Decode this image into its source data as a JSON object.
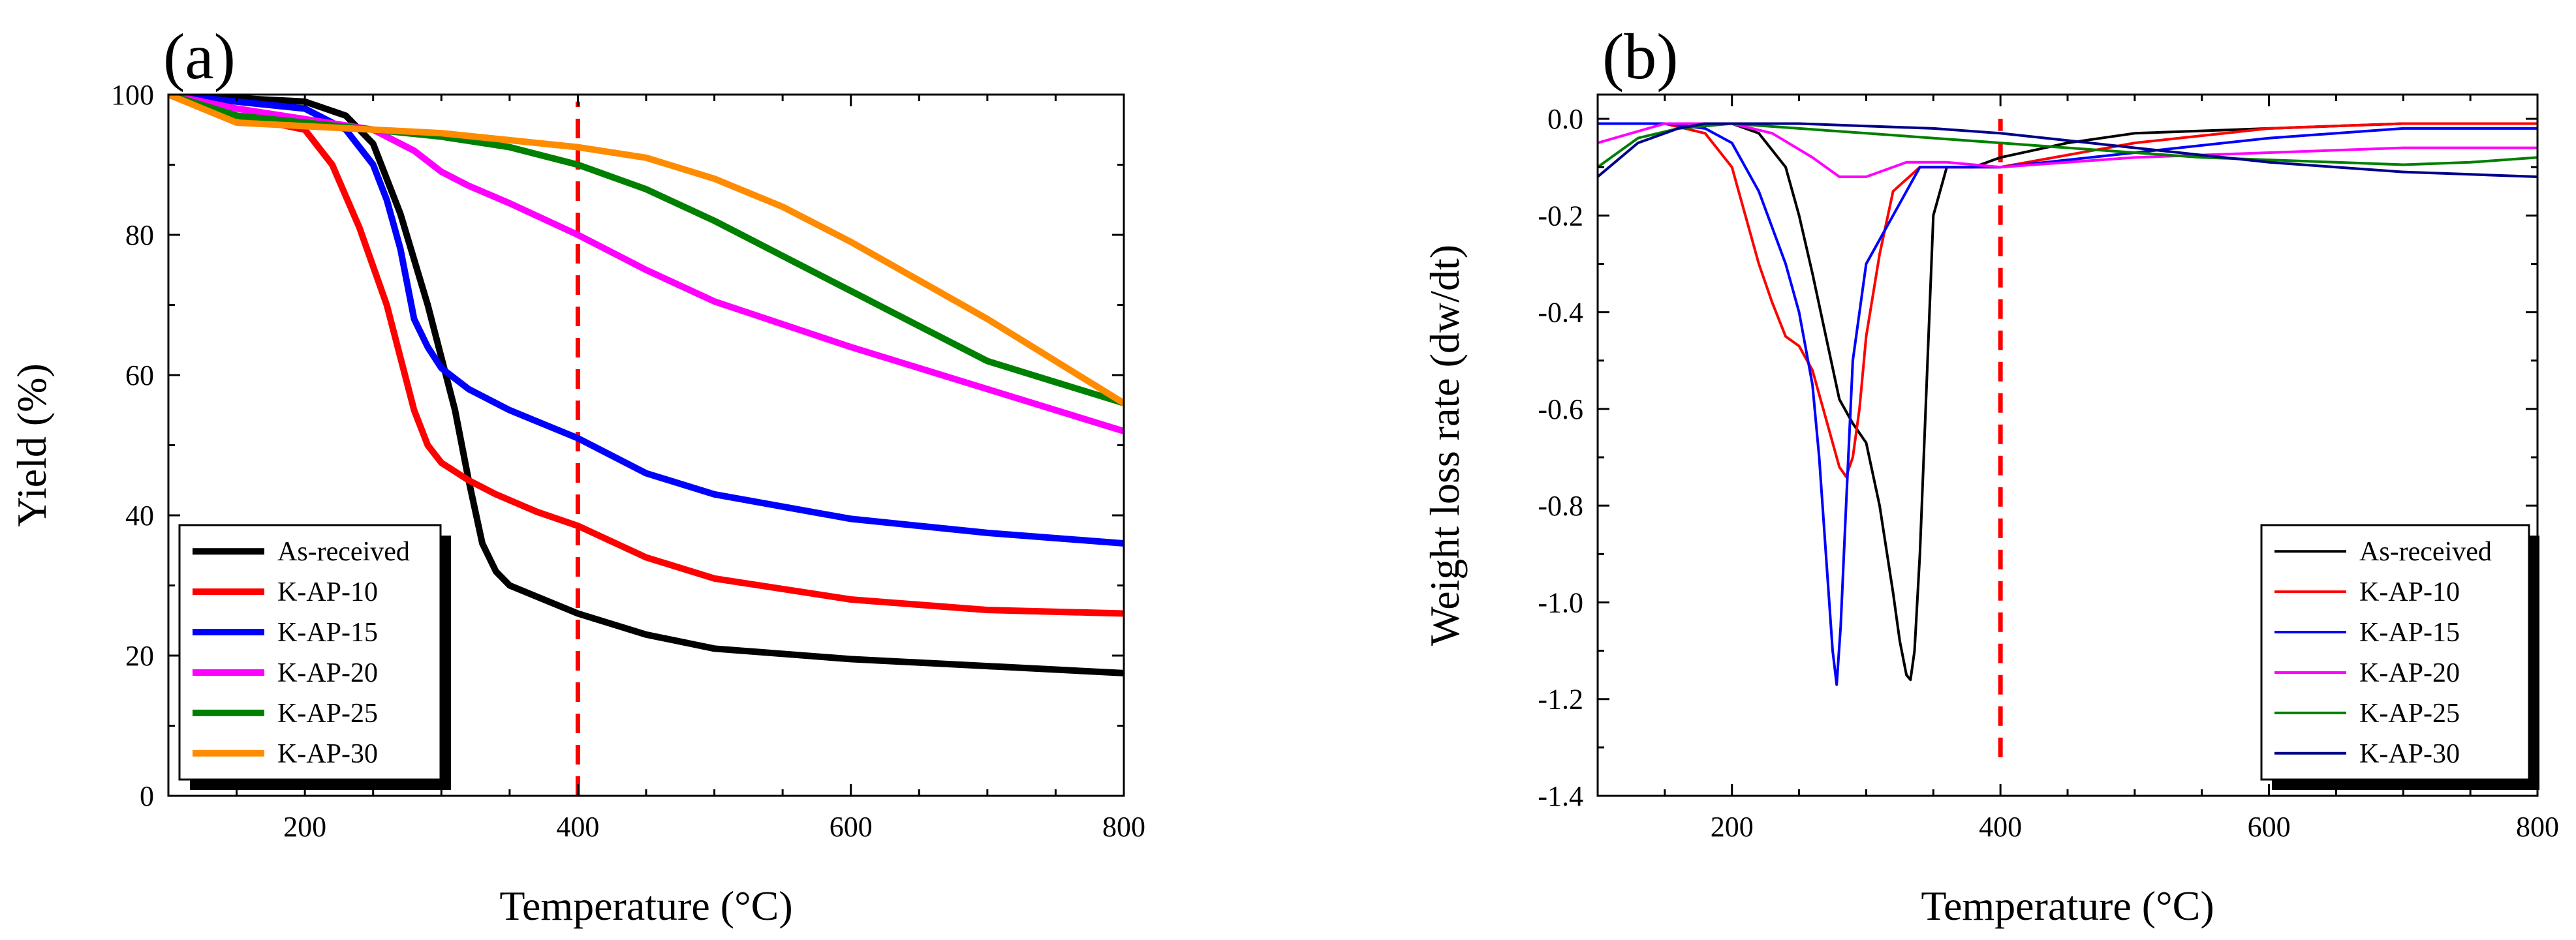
{
  "figure": {
    "panels": [
      "(a)",
      "(b)"
    ]
  },
  "colors": {
    "As-received": "#000000",
    "K-AP-10": "#ff0000",
    "K-AP-15": "#0000ff",
    "K-AP-20": "#ff00ff",
    "K-AP-25": "#008000",
    "K-AP-30": "#ff8c00",
    "K-AP-30-b": "#00008b",
    "marker_line": "#ff0000"
  },
  "chart_data": [
    {
      "panel": "(a)",
      "type": "line",
      "title": "",
      "xlabel": "Temperature (°C)",
      "ylabel": "Yield (%)",
      "xlim": [
        100,
        800
      ],
      "ylim": [
        0,
        100
      ],
      "xticks": [
        200,
        400,
        600,
        800
      ],
      "yticks": [
        0,
        20,
        40,
        60,
        80,
        100
      ],
      "grid": false,
      "legend_position": "bottom-left",
      "vertical_marker": {
        "x": 400,
        "style": "dashed",
        "color": "#ff0000",
        "y_range": [
          0,
          99
        ]
      },
      "series": [
        {
          "name": "As-received",
          "color": "#000000",
          "x": [
            100,
            150,
            200,
            230,
            250,
            270,
            290,
            310,
            320,
            330,
            340,
            350,
            375,
            400,
            450,
            500,
            600,
            700,
            800
          ],
          "y": [
            100,
            99.5,
            99,
            97,
            93,
            83,
            70,
            55,
            45,
            36,
            32,
            30,
            28,
            26,
            23,
            21,
            19.5,
            18.5,
            17.5
          ]
        },
        {
          "name": "K-AP-10",
          "color": "#ff0000",
          "x": [
            100,
            150,
            200,
            220,
            240,
            260,
            280,
            290,
            300,
            320,
            340,
            370,
            400,
            450,
            500,
            600,
            700,
            800
          ],
          "y": [
            100,
            97,
            95,
            90,
            81,
            70,
            55,
            50,
            47.5,
            45,
            43,
            40.5,
            38.5,
            34,
            31,
            28,
            26.5,
            26
          ]
        },
        {
          "name": "K-AP-15",
          "color": "#0000ff",
          "x": [
            100,
            150,
            200,
            230,
            250,
            260,
            270,
            280,
            290,
            300,
            320,
            350,
            400,
            450,
            500,
            600,
            700,
            800
          ],
          "y": [
            100,
            99,
            98,
            95,
            90,
            85,
            78,
            68,
            64,
            61,
            58,
            55,
            51,
            46,
            43,
            39.5,
            37.5,
            36
          ]
        },
        {
          "name": "K-AP-20",
          "color": "#ff00ff",
          "x": [
            100,
            150,
            200,
            250,
            280,
            300,
            320,
            350,
            400,
            450,
            500,
            600,
            700,
            800
          ],
          "y": [
            100,
            98,
            96.5,
            95,
            92,
            89,
            87,
            84.5,
            80,
            75,
            70.5,
            64,
            58,
            52
          ]
        },
        {
          "name": "K-AP-25",
          "color": "#008000",
          "x": [
            100,
            150,
            200,
            250,
            300,
            350,
            400,
            450,
            500,
            550,
            600,
            650,
            700,
            750,
            800
          ],
          "y": [
            100,
            97,
            96,
            95,
            94,
            92.5,
            90,
            86.5,
            82,
            77,
            72,
            67,
            62,
            59,
            56
          ]
        },
        {
          "name": "K-AP-30",
          "color": "#ff8c00",
          "x": [
            100,
            150,
            200,
            250,
            300,
            350,
            400,
            450,
            500,
            550,
            600,
            650,
            700,
            750,
            800
          ],
          "y": [
            100,
            96,
            95.5,
            95,
            94.5,
            93.5,
            92.5,
            91,
            88,
            84,
            79,
            73.5,
            68,
            62,
            56
          ]
        }
      ]
    },
    {
      "panel": "(b)",
      "type": "line",
      "title": "",
      "xlabel": "Temperature (°C)",
      "ylabel": "Weight loss rate (dw/dt)",
      "xlim": [
        100,
        800
      ],
      "ylim": [
        -1.4,
        0.05
      ],
      "xticks": [
        200,
        400,
        600,
        800
      ],
      "yticks": [
        0.0,
        -0.2,
        -0.4,
        -0.6,
        -0.8,
        -1.0,
        -1.2,
        -1.4
      ],
      "ytick_labels": [
        "0.0",
        "-0.2",
        "-0.4",
        "-0.6",
        "-0.8",
        "-1.0",
        "-1.2",
        "-1.4"
      ],
      "grid": false,
      "legend_position": "bottom-right",
      "vertical_marker": {
        "x": 400,
        "style": "dashed",
        "color": "#ff0000",
        "y_range": [
          -1.32,
          0
        ]
      },
      "series": [
        {
          "name": "As-received",
          "color": "#000000",
          "x": [
            100,
            150,
            200,
            220,
            240,
            250,
            260,
            270,
            280,
            290,
            300,
            310,
            320,
            325,
            330,
            333,
            336,
            340,
            345,
            350,
            360,
            380,
            400,
            450,
            500,
            600,
            700,
            800
          ],
          "y": [
            -0.01,
            -0.01,
            -0.01,
            -0.03,
            -0.1,
            -0.2,
            -0.32,
            -0.45,
            -0.58,
            -0.63,
            -0.67,
            -0.8,
            -0.98,
            -1.08,
            -1.15,
            -1.16,
            -1.1,
            -0.9,
            -0.55,
            -0.2,
            -0.1,
            -0.1,
            -0.08,
            -0.05,
            -0.03,
            -0.02,
            -0.01,
            -0.01
          ]
        },
        {
          "name": "K-AP-10",
          "color": "#ff0000",
          "x": [
            100,
            150,
            180,
            200,
            210,
            220,
            230,
            240,
            250,
            260,
            270,
            280,
            285,
            290,
            295,
            300,
            310,
            320,
            340,
            360,
            400,
            500,
            600,
            700,
            800
          ],
          "y": [
            -0.01,
            -0.01,
            -0.03,
            -0.1,
            -0.2,
            -0.3,
            -0.38,
            -0.45,
            -0.47,
            -0.52,
            -0.62,
            -0.72,
            -0.74,
            -0.7,
            -0.6,
            -0.45,
            -0.28,
            -0.15,
            -0.1,
            -0.1,
            -0.1,
            -0.05,
            -0.02,
            -0.01,
            -0.01
          ]
        },
        {
          "name": "K-AP-15",
          "color": "#0000ff",
          "x": [
            100,
            150,
            180,
            200,
            220,
            240,
            250,
            260,
            265,
            270,
            275,
            278,
            281,
            285,
            290,
            300,
            310,
            320,
            330,
            340,
            360,
            400,
            500,
            600,
            700,
            800
          ],
          "y": [
            -0.01,
            -0.01,
            -0.02,
            -0.05,
            -0.15,
            -0.3,
            -0.4,
            -0.55,
            -0.7,
            -0.9,
            -1.1,
            -1.17,
            -1.05,
            -0.8,
            -0.5,
            -0.3,
            -0.25,
            -0.2,
            -0.15,
            -0.1,
            -0.1,
            -0.1,
            -0.07,
            -0.04,
            -0.02,
            -0.02
          ]
        },
        {
          "name": "K-AP-20",
          "color": "#ff00ff",
          "x": [
            100,
            150,
            200,
            230,
            260,
            280,
            300,
            330,
            360,
            400,
            450,
            500,
            600,
            700,
            800
          ],
          "y": [
            -0.05,
            -0.01,
            -0.01,
            -0.03,
            -0.08,
            -0.12,
            -0.12,
            -0.09,
            -0.09,
            -0.1,
            -0.09,
            -0.08,
            -0.07,
            -0.06,
            -0.06
          ]
        },
        {
          "name": "K-AP-25",
          "color": "#008000",
          "x": [
            100,
            130,
            160,
            200,
            250,
            300,
            350,
            400,
            450,
            500,
            550,
            600,
            650,
            700,
            750,
            800
          ],
          "y": [
            -0.1,
            -0.04,
            -0.02,
            -0.01,
            -0.02,
            -0.03,
            -0.04,
            -0.05,
            -0.06,
            -0.07,
            -0.08,
            -0.085,
            -0.09,
            -0.095,
            -0.09,
            -0.08
          ]
        },
        {
          "name": "K-AP-30",
          "color": "#00008b",
          "x": [
            100,
            130,
            160,
            180,
            200,
            250,
            300,
            350,
            400,
            450,
            500,
            550,
            600,
            650,
            700,
            750,
            800
          ],
          "y": [
            -0.12,
            -0.05,
            -0.02,
            -0.01,
            -0.01,
            -0.01,
            -0.015,
            -0.02,
            -0.03,
            -0.045,
            -0.06,
            -0.075,
            -0.09,
            -0.1,
            -0.11,
            -0.115,
            -0.12
          ]
        }
      ]
    }
  ]
}
